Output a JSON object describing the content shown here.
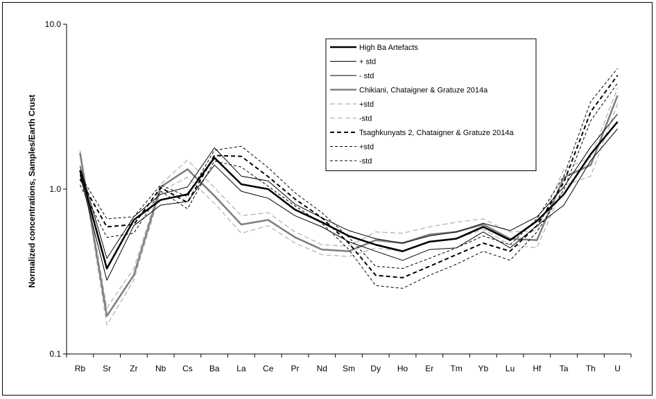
{
  "chart_data": {
    "type": "line",
    "title": "",
    "xlabel": "",
    "ylabel": "Normalized concentrations, Samples/Earth Crust",
    "yscale": "log",
    "ylim": [
      0.1,
      10
    ],
    "yticks": [
      0.1,
      1,
      10
    ],
    "ytick_labels": [
      "0.1",
      "1.0",
      "10.0"
    ],
    "grid": false,
    "legend_position": "top-right",
    "categories": [
      "Rb",
      "Sr",
      "Zr",
      "Nb",
      "Cs",
      "Ba",
      "La",
      "Ce",
      "Pr",
      "Nd",
      "Sm",
      "Dy",
      "Ho",
      "Er",
      "Tm",
      "Yb",
      "Lu",
      "Hf",
      "Ta",
      "Th",
      "U"
    ],
    "series": [
      {
        "name": "High Ba Artefacts",
        "color": "#000000",
        "width": 2.6,
        "dash": "",
        "values": [
          1.3,
          0.33,
          0.65,
          0.86,
          0.93,
          1.55,
          1.07,
          1.0,
          0.75,
          0.63,
          0.52,
          0.46,
          0.42,
          0.48,
          0.5,
          0.59,
          0.49,
          0.64,
          0.93,
          1.63,
          2.56
        ]
      },
      {
        "name": "+ std",
        "color": "#000000",
        "width": 1,
        "dash": "",
        "values": [
          1.38,
          0.38,
          0.68,
          0.93,
          1.03,
          1.78,
          1.2,
          1.12,
          0.81,
          0.67,
          0.56,
          0.5,
          0.47,
          0.52,
          0.55,
          0.62,
          0.56,
          0.68,
          1.03,
          1.8,
          2.85
        ]
      },
      {
        "name": "- std",
        "color": "#000000",
        "width": 1,
        "dash": "",
        "values": [
          1.22,
          0.28,
          0.6,
          0.8,
          0.84,
          1.4,
          0.97,
          0.88,
          0.69,
          0.59,
          0.48,
          0.42,
          0.37,
          0.43,
          0.44,
          0.55,
          0.44,
          0.6,
          0.8,
          1.49,
          2.32
        ]
      },
      {
        "name": "Chikiani, Chataigner & Gratuze 2014a",
        "color": "#808080",
        "width": 2.6,
        "dash": "",
        "values": [
          1.66,
          0.17,
          0.3,
          1.03,
          1.32,
          0.91,
          0.61,
          0.65,
          0.51,
          0.43,
          0.42,
          0.49,
          0.47,
          0.53,
          0.55,
          0.61,
          0.5,
          0.49,
          1.18,
          1.4,
          3.7
        ]
      },
      {
        "name": "+std",
        "color": "#b4b4b4",
        "width": 1.3,
        "dash": "7 4",
        "values": [
          1.72,
          0.19,
          0.33,
          1.07,
          1.5,
          1.02,
          0.69,
          0.72,
          0.55,
          0.46,
          0.45,
          0.55,
          0.54,
          0.59,
          0.63,
          0.66,
          0.55,
          0.56,
          1.32,
          1.56,
          4.1
        ]
      },
      {
        "name": "-std",
        "color": "#b4b4b4",
        "width": 1.3,
        "dash": "7 4",
        "values": [
          1.6,
          0.15,
          0.28,
          0.97,
          1.18,
          0.82,
          0.54,
          0.6,
          0.47,
          0.4,
          0.39,
          0.44,
          0.42,
          0.48,
          0.5,
          0.57,
          0.46,
          0.44,
          1.05,
          1.2,
          3.3
        ]
      },
      {
        "name": "Tsaghkunyats 2, Chataigner & Gratuze 2014a",
        "color": "#000000",
        "width": 2,
        "dash": "6 4",
        "values": [
          1.15,
          0.59,
          0.61,
          1.02,
          0.83,
          1.6,
          1.58,
          1.19,
          0.87,
          0.67,
          0.47,
          0.3,
          0.29,
          0.34,
          0.4,
          0.47,
          0.42,
          0.6,
          1.1,
          2.95,
          4.9
        ]
      },
      {
        "name": "+std",
        "color": "#000000",
        "width": 1,
        "dash": "4 3",
        "values": [
          1.22,
          0.66,
          0.68,
          1.06,
          0.9,
          1.72,
          1.82,
          1.35,
          0.95,
          0.72,
          0.51,
          0.34,
          0.33,
          0.38,
          0.44,
          0.52,
          0.46,
          0.66,
          1.2,
          3.4,
          5.4
        ]
      },
      {
        "name": "-std",
        "color": "#000000",
        "width": 1,
        "dash": "4 3",
        "values": [
          1.06,
          0.51,
          0.54,
          0.97,
          0.76,
          1.48,
          1.36,
          1.04,
          0.79,
          0.62,
          0.43,
          0.26,
          0.25,
          0.3,
          0.35,
          0.42,
          0.37,
          0.55,
          0.99,
          2.6,
          4.4
        ]
      }
    ]
  }
}
